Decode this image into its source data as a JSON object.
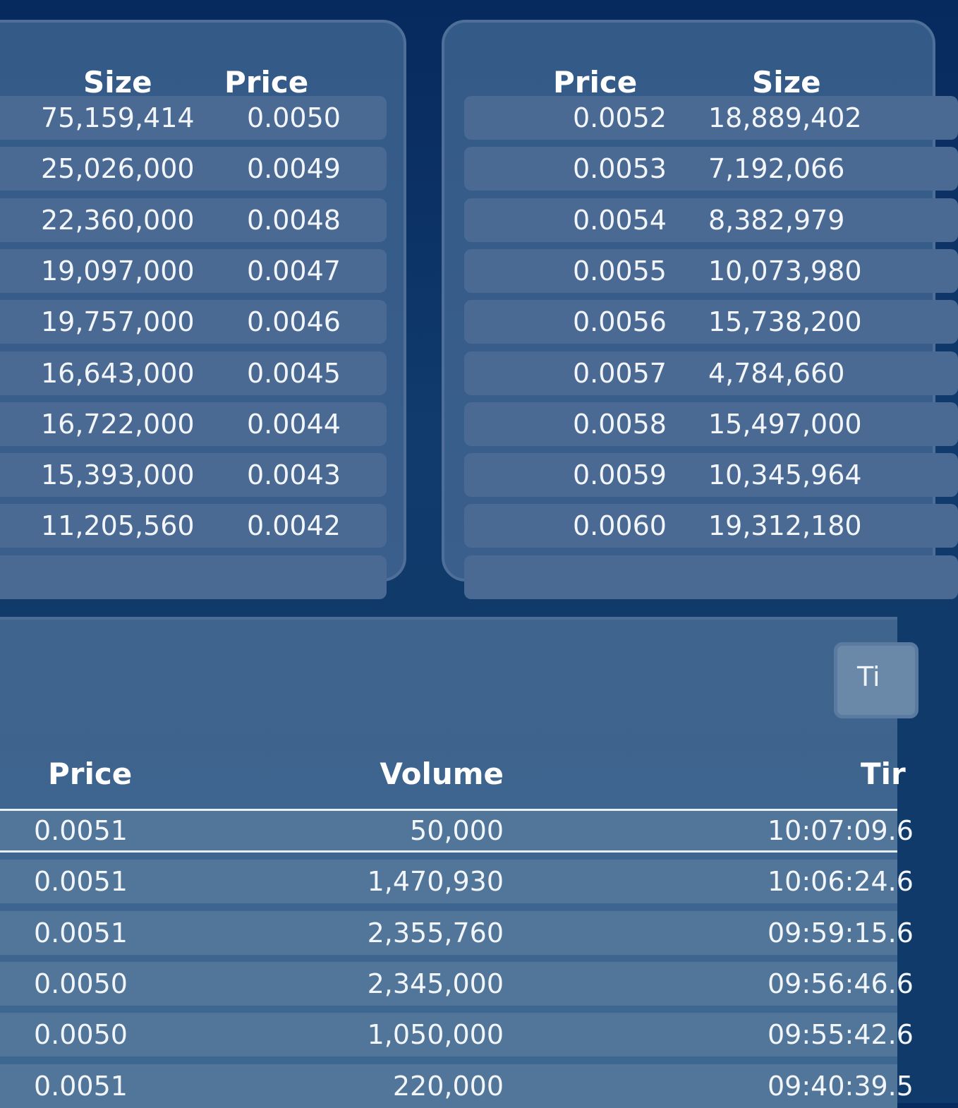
{
  "bids": {
    "headers": {
      "size": "Size",
      "price": "Price"
    },
    "rows": [
      {
        "size": "75,159,414",
        "price": "0.0050"
      },
      {
        "size": "25,026,000",
        "price": "0.0049"
      },
      {
        "size": "22,360,000",
        "price": "0.0048"
      },
      {
        "size": "19,097,000",
        "price": "0.0047"
      },
      {
        "size": "19,757,000",
        "price": "0.0046"
      },
      {
        "size": "16,643,000",
        "price": "0.0045"
      },
      {
        "size": "16,722,000",
        "price": "0.0044"
      },
      {
        "size": "15,393,000",
        "price": "0.0043"
      },
      {
        "size": "11,205,560",
        "price": "0.0042"
      }
    ]
  },
  "asks": {
    "headers": {
      "price": "Price",
      "size": "Size"
    },
    "rows": [
      {
        "price": "0.0052",
        "size": "18,889,402"
      },
      {
        "price": "0.0053",
        "size": "7,192,066"
      },
      {
        "price": "0.0054",
        "size": "8,382,979"
      },
      {
        "price": "0.0055",
        "size": "10,073,980"
      },
      {
        "price": "0.0056",
        "size": "15,738,200"
      },
      {
        "price": "0.0057",
        "size": "4,784,660"
      },
      {
        "price": "0.0058",
        "size": "15,497,000"
      },
      {
        "price": "0.0059",
        "size": "10,345,964"
      },
      {
        "price": "0.0060",
        "size": "19,312,180"
      }
    ]
  },
  "trades": {
    "tab_label": "Ti",
    "headers": {
      "price": "Price",
      "volume": "Volume",
      "time": "Tir"
    },
    "rows": [
      {
        "price": "0.0051",
        "volume": "50,000",
        "time": "10:07:09.6"
      },
      {
        "price": "0.0051",
        "volume": "1,470,930",
        "time": "10:06:24.6"
      },
      {
        "price": "0.0051",
        "volume": "2,355,760",
        "time": "09:59:15.6"
      },
      {
        "price": "0.0050",
        "volume": "2,345,000",
        "time": "09:56:46.6"
      },
      {
        "price": "0.0050",
        "volume": "1,050,000",
        "time": "09:55:42.6"
      },
      {
        "price": "0.0051",
        "volume": "220,000",
        "time": "09:40:39.5"
      }
    ]
  }
}
